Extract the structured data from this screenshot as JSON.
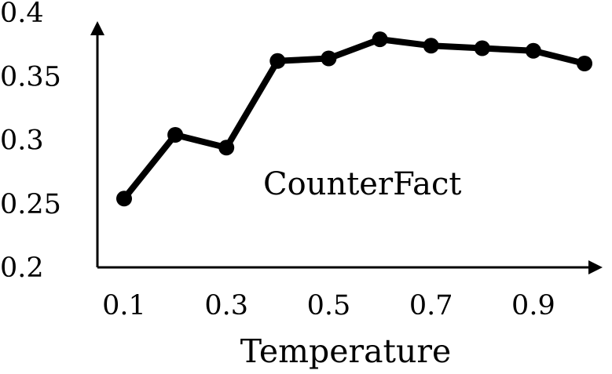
{
  "chart_data": {
    "type": "line",
    "title": "",
    "xlabel": "Temperature",
    "ylabel": "",
    "x": [
      0.1,
      0.2,
      0.3,
      0.4,
      0.5,
      0.6,
      0.7,
      0.8,
      0.9,
      1.0
    ],
    "series": [
      {
        "values": [
          0.254,
          0.304,
          0.294,
          0.362,
          0.364,
          0.379,
          0.374,
          0.372,
          0.37,
          0.36
        ]
      }
    ],
    "xticks": [
      "0.1",
      "0.3",
      "0.5",
      "0.7",
      "0.9"
    ],
    "yticks": [
      "0.2",
      "0.25",
      "0.3",
      "0.35",
      "0.4"
    ],
    "xlim": [
      0.1,
      1.0
    ],
    "ylim": [
      0.2,
      0.4
    ],
    "annotation": "CounterFact",
    "grid": false,
    "line_color": "#000000",
    "marker": "filled-circle"
  }
}
